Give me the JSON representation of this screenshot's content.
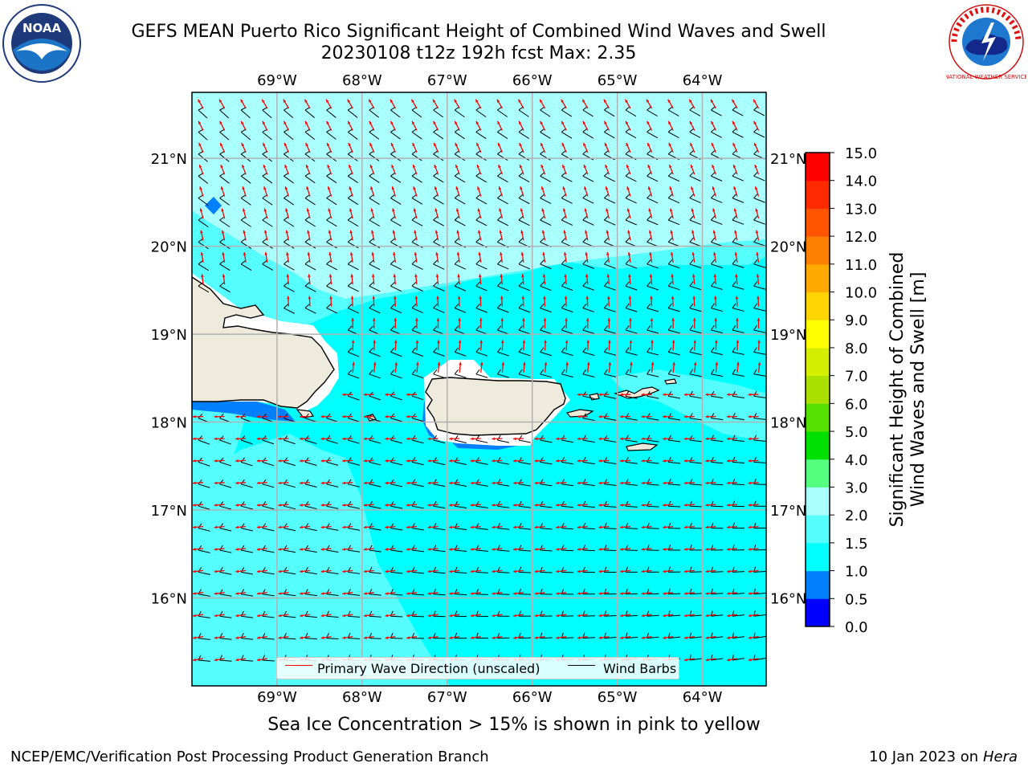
{
  "title": {
    "line1": "GEFS MEAN Puerto Rico Significant Height of Combined Wind Waves and Swell",
    "line2": "20230108 t12z 192h fcst   Max: 2.35"
  },
  "logos": {
    "left": {
      "text": "NOAA",
      "icon": "noaa-logo-icon",
      "ring_text": "NATIONAL OCEANIC AND ATMOSPHERIC ADMINISTRATION · U.S. DEPARTMENT OF COMMERCE"
    },
    "right": {
      "text": "NATIONAL WEATHER SERVICE",
      "icon": "nws-logo-icon"
    }
  },
  "map": {
    "lon_labels": [
      "69°W",
      "68°W",
      "67°W",
      "66°W",
      "65°W",
      "64°W"
    ],
    "lat_labels": [
      "21°N",
      "20°N",
      "19°N",
      "18°N",
      "17°N",
      "16°N"
    ],
    "lon_range": [
      -70.0,
      -63.25
    ],
    "lat_range": [
      15.0,
      21.75
    ],
    "grid": true,
    "max_value": 2.35,
    "background_color": "#00ffff",
    "land_color": "#efebdc"
  },
  "legend": {
    "wave_label": "Primary Wave Direction (unscaled)",
    "wave_color": "#ff0000",
    "barb_label": "Wind Barbs",
    "barb_color": "#000000"
  },
  "colorbar": {
    "label_line1": "Significant Height of Combined",
    "label_line2": "Wind Waves and Swell [m]",
    "ticks": [
      "0.0",
      "0.5",
      "1.0",
      "1.5",
      "2.0",
      "3.0",
      "4.0",
      "5.0",
      "6.0",
      "7.0",
      "8.0",
      "9.0",
      "10.0",
      "11.0",
      "12.0",
      "13.0",
      "14.0",
      "15.0"
    ],
    "colors": [
      "#0000ff",
      "#0080ff",
      "#00ffff",
      "#55ffff",
      "#aaffff",
      "#55ff80",
      "#00e000",
      "#55e000",
      "#aae000",
      "#d4ee00",
      "#ffff00",
      "#ffd400",
      "#ffaa00",
      "#ff8000",
      "#ff5500",
      "#ff2a00",
      "#ff0000"
    ]
  },
  "subtitle": "Sea Ice Concentration > 15% is shown in pink to yellow",
  "footer": {
    "left": "NCEP/EMC/Verification Post Processing Product Generation Branch",
    "right_prefix": "10 Jan 2023 on ",
    "right_machine": "Hera"
  }
}
